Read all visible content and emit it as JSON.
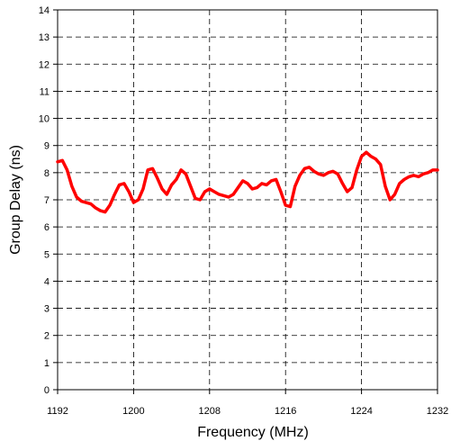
{
  "chart_data": {
    "type": "line",
    "title": "",
    "xlabel": "Frequency (MHz)",
    "ylabel": "Group Delay (ns)",
    "xlim": [
      1192,
      1232
    ],
    "ylim": [
      0,
      14
    ],
    "x_ticks": [
      "1192",
      "1200",
      "1208",
      "1216",
      "1224",
      "1232"
    ],
    "y_ticks": [
      "0",
      "1",
      "2",
      "3",
      "4",
      "5",
      "6",
      "7",
      "8",
      "9",
      "10",
      "11",
      "12",
      "13",
      "14"
    ],
    "grid": true,
    "legend": "none",
    "series": [
      {
        "color": "#ff0000",
        "x": [
          1192,
          1192.5,
          1193,
          1193.5,
          1194,
          1194.5,
          1195,
          1195.5,
          1196,
          1196.5,
          1197,
          1197.5,
          1198,
          1198.5,
          1199,
          1199.5,
          1200,
          1200.5,
          1201,
          1201.5,
          1202,
          1202.5,
          1203,
          1203.5,
          1204,
          1204.5,
          1205,
          1205.5,
          1206,
          1206.5,
          1207,
          1207.5,
          1208,
          1208.5,
          1209,
          1209.5,
          1210,
          1210.5,
          1211,
          1211.5,
          1212,
          1212.5,
          1213,
          1213.5,
          1214,
          1214.5,
          1215,
          1215.5,
          1216,
          1216.5,
          1217,
          1217.5,
          1218,
          1218.5,
          1219,
          1219.5,
          1220,
          1220.5,
          1221,
          1221.5,
          1222,
          1222.5,
          1223,
          1223.5,
          1224,
          1224.5,
          1225,
          1225.5,
          1226,
          1226.5,
          1227,
          1227.5,
          1228,
          1228.5,
          1229,
          1229.5,
          1230,
          1230.5,
          1231,
          1231.5,
          1232
        ],
        "y": [
          8.4,
          8.45,
          8.1,
          7.5,
          7.1,
          6.95,
          6.9,
          6.85,
          6.7,
          6.6,
          6.55,
          6.8,
          7.2,
          7.55,
          7.6,
          7.3,
          6.9,
          7.0,
          7.4,
          8.1,
          8.15,
          7.8,
          7.4,
          7.2,
          7.55,
          7.75,
          8.1,
          7.95,
          7.5,
          7.05,
          7.0,
          7.3,
          7.4,
          7.3,
          7.2,
          7.15,
          7.1,
          7.2,
          7.45,
          7.7,
          7.6,
          7.4,
          7.45,
          7.6,
          7.55,
          7.7,
          7.75,
          7.3,
          6.8,
          6.75,
          7.5,
          7.9,
          8.15,
          8.2,
          8.05,
          7.95,
          7.9,
          8.0,
          8.05,
          7.95,
          7.6,
          7.3,
          7.45,
          8.1,
          8.6,
          8.75,
          8.6,
          8.5,
          8.3,
          7.5,
          7.0,
          7.2,
          7.6,
          7.75,
          7.85,
          7.9,
          7.85,
          7.95,
          8.0,
          8.1,
          8.1
        ]
      }
    ]
  }
}
